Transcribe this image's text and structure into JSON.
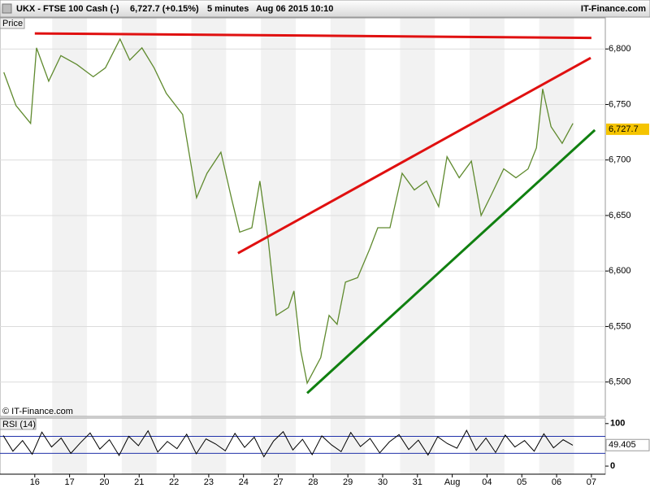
{
  "chart_data": {
    "type": "line",
    "symbol": "UKX - FTSE 100 Cash (-)",
    "quote": "6,727.7 (+0.15%)",
    "interval": "5 minutes",
    "datetime": "Aug 06 2015 10:10",
    "brand": "IT-Finance.com",
    "panel_label": "Price",
    "watermark": "© IT-Finance.com",
    "categories": [
      "16",
      "17",
      "20",
      "21",
      "22",
      "23",
      "24",
      "27",
      "28",
      "29",
      "30",
      "31",
      "Aug",
      "04",
      "05",
      "06",
      "07"
    ],
    "xlim": [
      -1,
      16.4
    ],
    "ylim": [
      6469,
      6828
    ],
    "yticks": [
      {
        "value": 6500,
        "label": "6,500"
      },
      {
        "value": 6550,
        "label": "6,550"
      },
      {
        "value": 6600,
        "label": "6,600"
      },
      {
        "value": 6650,
        "label": "6,650"
      },
      {
        "value": 6700,
        "label": "6,700"
      },
      {
        "value": 6750,
        "label": "6,750"
      },
      {
        "value": 6800,
        "label": "6,800"
      }
    ],
    "grid": true,
    "series": [
      {
        "name": "Price",
        "color": "#5f8a2e",
        "x": [
          -0.89,
          -0.54,
          -0.12,
          0.05,
          0.4,
          0.75,
          1.21,
          1.68,
          2.03,
          2.45,
          2.73,
          3.08,
          3.43,
          3.78,
          4.25,
          4.49,
          4.65,
          4.95,
          5.35,
          5.65,
          5.89,
          6.24,
          6.47,
          6.71,
          6.94,
          7.29,
          7.45,
          7.64,
          7.83,
          8.22,
          8.46,
          8.69,
          8.93,
          9.28,
          9.63,
          9.86,
          10.21,
          10.56,
          10.91,
          11.26,
          11.61,
          11.85,
          12.2,
          12.55,
          12.83,
          13.13,
          13.48,
          13.83,
          14.18,
          14.42,
          14.6,
          14.84,
          15.16,
          15.47
        ],
        "values": [
          6779,
          6749,
          6733,
          6801,
          6771,
          6794,
          6786,
          6775,
          6783,
          6809,
          6790,
          6801,
          6783,
          6760,
          6741,
          6696,
          6666,
          6688,
          6707,
          6666,
          6635,
          6639,
          6681,
          6628,
          6560,
          6567,
          6582,
          6529,
          6499,
          6522,
          6560,
          6552,
          6590,
          6594,
          6620,
          6639,
          6639,
          6688,
          6673,
          6681,
          6658,
          6703,
          6684,
          6699,
          6650,
          6669,
          6692,
          6684,
          6692,
          6711,
          6764,
          6730,
          6715,
          6733
        ]
      }
    ],
    "trendlines": [
      {
        "color": "#e01010",
        "x": [
          0,
          16
        ],
        "y": [
          6814,
          6810
        ]
      },
      {
        "color": "#e01010",
        "x": [
          5.84,
          15.98
        ],
        "y": [
          6616,
          6792
        ]
      },
      {
        "color": "#108010",
        "x": [
          7.83,
          16.1
        ],
        "y": [
          6490,
          6727
        ]
      }
    ],
    "last_value": 6727.7,
    "last_label": "6,727.7",
    "last_color": "#f5c400",
    "rsi": {
      "label": "RSI (14)",
      "ylim": [
        -19,
        113
      ],
      "yticks": [
        0,
        100
      ],
      "levels": [
        30,
        70
      ],
      "color": "#000000",
      "values": [
        72,
        35,
        60,
        28,
        80,
        45,
        66,
        30,
        55,
        78,
        40,
        62,
        25,
        70,
        48,
        83,
        33,
        58,
        41,
        75,
        29,
        64,
        52,
        36,
        77,
        44,
        68,
        22,
        59,
        81,
        38,
        63,
        27,
        71,
        50,
        34,
        79,
        46,
        65,
        31,
        57,
        74,
        39,
        61,
        26,
        69,
        53,
        42,
        84,
        37,
        66,
        32,
        73,
        45,
        60,
        35,
        76,
        43,
        62,
        49
      ],
      "last_value": 49.405,
      "last_label": "49.405"
    }
  }
}
